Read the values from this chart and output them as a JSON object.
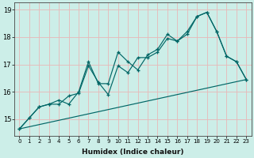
{
  "xlabel": "Humidex (Indice chaleur)",
  "ylabel": "",
  "background_color": "#cceee8",
  "grid_color": "#e8b8b8",
  "line_color": "#006666",
  "xlim": [
    -0.5,
    23.5
  ],
  "ylim": [
    14.4,
    19.25
  ],
  "xticks": [
    0,
    1,
    2,
    3,
    4,
    5,
    6,
    7,
    8,
    9,
    10,
    11,
    12,
    13,
    14,
    15,
    16,
    17,
    18,
    19,
    20,
    21,
    22,
    23
  ],
  "yticks": [
    15,
    16,
    17,
    18,
    19
  ],
  "series1_x": [
    0,
    1,
    2,
    3,
    4,
    5,
    6,
    7,
    8,
    9,
    10,
    11,
    12,
    13,
    14,
    15,
    16,
    17,
    18,
    19,
    20,
    21,
    22,
    23
  ],
  "series1_y": [
    14.65,
    15.05,
    15.45,
    15.55,
    15.55,
    15.85,
    15.95,
    16.95,
    16.35,
    15.9,
    16.95,
    16.7,
    17.25,
    17.25,
    17.45,
    17.95,
    17.85,
    18.1,
    18.75,
    18.9,
    18.2,
    17.3,
    17.1,
    16.45
  ],
  "series2_x": [
    0,
    1,
    2,
    3,
    4,
    5,
    6,
    7,
    8,
    9,
    10,
    11,
    12,
    13,
    14,
    15,
    16,
    17,
    18,
    19,
    20,
    21,
    22,
    23
  ],
  "series2_y": [
    14.65,
    15.05,
    15.45,
    15.55,
    15.7,
    15.55,
    16.0,
    17.1,
    16.3,
    16.3,
    17.45,
    17.1,
    16.8,
    17.35,
    17.55,
    18.1,
    17.85,
    18.2,
    18.75,
    18.9,
    18.2,
    17.3,
    17.1,
    16.45
  ],
  "series3_x": [
    0,
    23
  ],
  "series3_y": [
    14.65,
    16.45
  ]
}
